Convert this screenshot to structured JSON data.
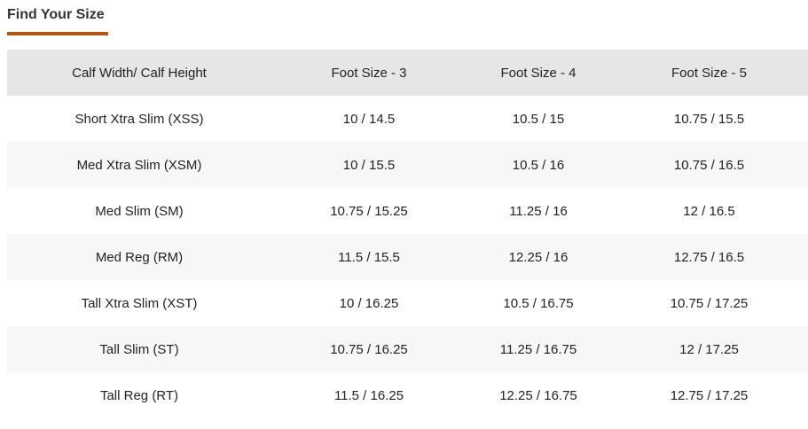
{
  "header": {
    "title": "Find Your Size"
  },
  "table": {
    "columns": [
      "Calf Width/ Calf Height",
      "Foot Size - 3",
      "Foot Size - 4",
      "Foot Size - 5"
    ],
    "rows": [
      [
        "Short Xtra Slim (XSS)",
        "10 / 14.5",
        "10.5 / 15",
        "10.75 / 15.5"
      ],
      [
        "Med Xtra Slim (XSM)",
        "10 / 15.5",
        "10.5 / 16",
        "10.75 / 16.5"
      ],
      [
        "Med Slim (SM)",
        "10.75 / 15.25",
        "11.25 / 16",
        "12 / 16.5"
      ],
      [
        "Med Reg (RM)",
        "11.5 / 15.5",
        "12.25 / 16",
        "12.75 / 16.5"
      ],
      [
        "Tall Xtra Slim (XST)",
        "10 / 16.25",
        "10.5 / 16.75",
        "10.75 / 17.25"
      ],
      [
        "Tall Slim (ST)",
        "10.75 / 16.25",
        "11.25 / 16.75",
        "12 / 17.25"
      ],
      [
        "Tall Reg (RT)",
        "11.5 / 16.25",
        "12.25 / 16.75",
        "12.75 / 17.25"
      ]
    ]
  }
}
